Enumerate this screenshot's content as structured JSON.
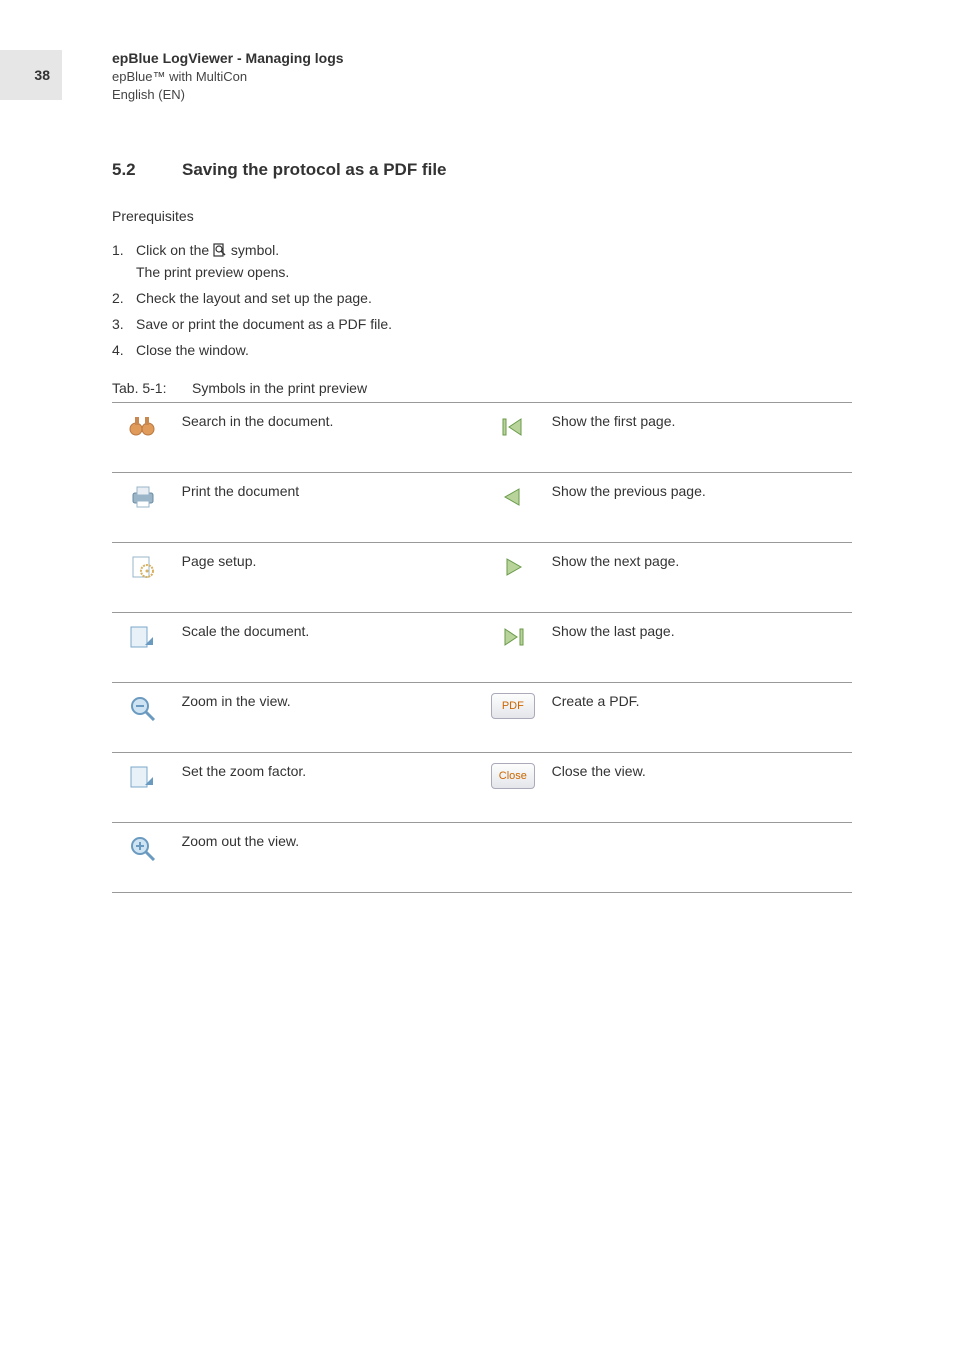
{
  "page_number": "38",
  "header": {
    "title": "epBlue LogViewer - Managing logs",
    "subtitle1": "epBlue™ with MultiCon",
    "subtitle2": "English (EN)"
  },
  "section": {
    "number": "5.2",
    "title": "Saving the protocol as a PDF file"
  },
  "prerequisites_label": "Prerequisites",
  "steps": [
    {
      "num": "1.",
      "text_before": "Click on the ",
      "text_after": " symbol.",
      "has_icon": true,
      "subtext": "The print preview opens."
    },
    {
      "num": "2.",
      "text": "Check the layout and set up the page."
    },
    {
      "num": "3.",
      "text": "Save or print the document as a PDF file."
    },
    {
      "num": "4.",
      "text": "Close the window."
    }
  ],
  "table_caption": {
    "num": "Tab. 5-1:",
    "text": "Symbols in the print preview"
  },
  "symbol_rows": [
    {
      "left_icon": "binoculars",
      "left_desc": "Search in the document.",
      "right_icon": "first",
      "right_desc": "Show the first page."
    },
    {
      "left_icon": "printer",
      "left_desc": "Print the document",
      "right_icon": "prev",
      "right_desc": "Show the previous page."
    },
    {
      "left_icon": "pagesetup",
      "left_desc": "Page setup.",
      "right_icon": "next",
      "right_desc": "Show the next page."
    },
    {
      "left_icon": "scale",
      "left_desc": "Scale the document.",
      "right_icon": "last",
      "right_desc": "Show the last page."
    },
    {
      "left_icon": "zoomin",
      "left_desc": "Zoom in the view.",
      "right_icon": "pdf",
      "right_desc": "Create a PDF."
    },
    {
      "left_icon": "zoomfactor",
      "left_desc": "Set the zoom factor.",
      "right_icon": "close",
      "right_desc": "Close the view."
    },
    {
      "left_icon": "zoomout",
      "left_desc": "Zoom out the view.",
      "right_icon": "",
      "right_desc": ""
    }
  ],
  "icon_labels": {
    "pdf": "PDF",
    "close": "Close"
  },
  "colors": {
    "text": "#333333",
    "border": "#999999",
    "icon_blue": "#7aa8c9",
    "icon_green": "#8fbf6f",
    "icon_orange": "#e09a5a",
    "btn_text": "#cc6600",
    "nav_fill": "#b8d49a",
    "nav_stroke": "#6a9a4a",
    "page_num_bg": "#e6e6e6"
  }
}
